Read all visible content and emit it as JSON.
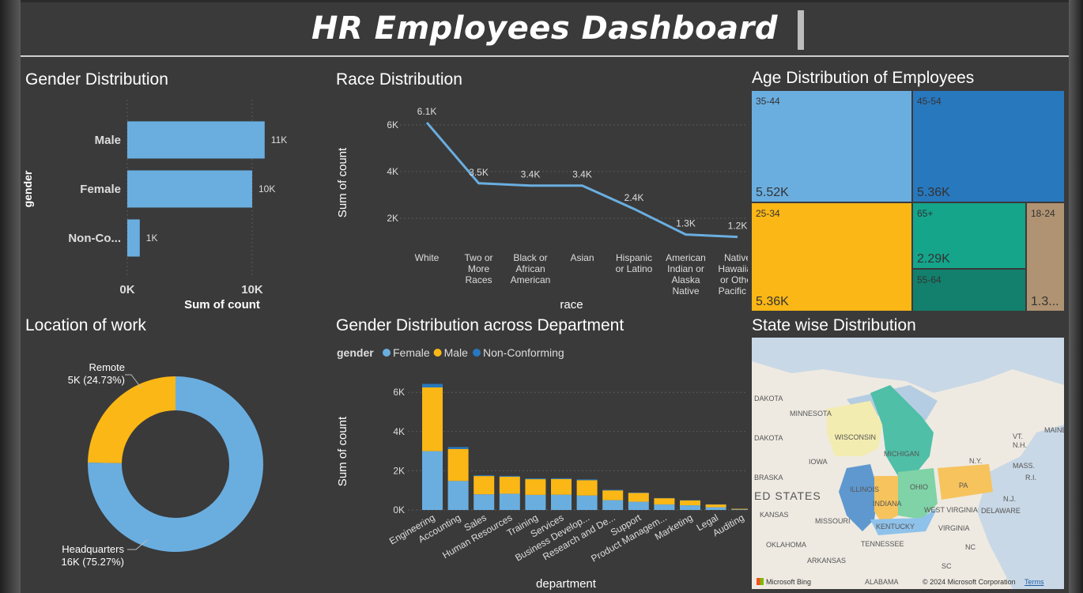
{
  "header": {
    "title": "HR Employees Dashboard"
  },
  "gender_panel": {
    "title": "Gender Distribution",
    "chart_data": {
      "type": "bar",
      "orientation": "horizontal",
      "categories": [
        "Male",
        "Female",
        "Non-Co..."
      ],
      "values": [
        11,
        10,
        1
      ],
      "data_labels": [
        "11K",
        "10K",
        "1K"
      ],
      "ticks": [
        "0K",
        "10K"
      ],
      "xlabel": "Sum of count",
      "ylabel": "gender",
      "color": "#6aaee0"
    }
  },
  "race_panel": {
    "title": "Race Distribution",
    "chart_data": {
      "type": "line",
      "categories": [
        "White",
        "Two or More Races",
        "Black or African American",
        "Asian",
        "Hispanic or Latino",
        "American Indian or Alaska Native",
        "Native Hawaiian or Other Pacific ..."
      ],
      "category_lines": [
        [
          "White"
        ],
        [
          "Two or",
          "More",
          "Races"
        ],
        [
          "Black or",
          "African",
          "American"
        ],
        [
          "Asian"
        ],
        [
          "Hispanic",
          "or Latino"
        ],
        [
          "American",
          "Indian or",
          "Alaska",
          "Native"
        ],
        [
          "Native",
          "Hawaiian",
          "or Other",
          "Pacific ..."
        ]
      ],
      "values": [
        6.1,
        3.5,
        3.4,
        3.4,
        2.4,
        1.3,
        1.2
      ],
      "data_labels": [
        "6.1K",
        "3.5K",
        "3.4K",
        "3.4K",
        "2.4K",
        "1.3K",
        "1.2K"
      ],
      "ticks": [
        "2K",
        "4K",
        "6K"
      ],
      "xlabel": "race",
      "ylabel": "Sum of count",
      "color": "#6aaee0"
    }
  },
  "age_panel": {
    "title": "Age Distribution of Employees",
    "chart_data": {
      "type": "treemap",
      "items": [
        {
          "label": "35-44",
          "value": "5.52K",
          "color": "#6aaee0"
        },
        {
          "label": "45-54",
          "value": "5.36K",
          "color": "#2878be"
        },
        {
          "label": "25-34",
          "value": "5.36K",
          "color": "#fbb715"
        },
        {
          "label": "65+",
          "value": "2.29K",
          "color": "#14a58b"
        },
        {
          "label": "55-64",
          "value": "",
          "color": "#12806c"
        },
        {
          "label": "18-24",
          "value": "1.3...",
          "color": "#b09372"
        }
      ]
    }
  },
  "location_panel": {
    "title": "Location of work",
    "chart_data": {
      "type": "pie",
      "variant": "donut",
      "slices": [
        {
          "name": "Headquarters",
          "value": 75.27,
          "label_line1": "Headquarters",
          "label_line2": "16K (75.27%)",
          "color": "#6aaee0"
        },
        {
          "name": "Remote",
          "value": 24.73,
          "label_line1": "Remote",
          "label_line2": "5K (24.73%)",
          "color": "#fbb715"
        }
      ]
    }
  },
  "dept_panel": {
    "title": "Gender Distribution across Department",
    "legend_title": "gender",
    "chart_data": {
      "type": "bar",
      "stacked": true,
      "categories": [
        "Engineering",
        "Accounting",
        "Sales",
        "Human Resources",
        "Training",
        "Services",
        "Business Develop...",
        "Research and De...",
        "Support",
        "Product Managem...",
        "Marketing",
        "Legal",
        "Auditing"
      ],
      "series": [
        {
          "name": "Female",
          "color": "#6aaee0",
          "values": [
            3.0,
            1.48,
            0.8,
            0.83,
            0.77,
            0.78,
            0.74,
            0.5,
            0.42,
            0.28,
            0.24,
            0.14,
            0.03
          ]
        },
        {
          "name": "Male",
          "color": "#fbb715",
          "values": [
            3.25,
            1.63,
            0.93,
            0.87,
            0.8,
            0.8,
            0.78,
            0.5,
            0.45,
            0.32,
            0.25,
            0.14,
            0.03
          ]
        },
        {
          "name": "Non-Conforming",
          "color": "#2878be",
          "values": [
            0.18,
            0.1,
            0.04,
            0.04,
            0.04,
            0.04,
            0.04,
            0.03,
            0.02,
            0.01,
            0.01,
            0.01,
            0.0
          ]
        }
      ],
      "ticks": [
        "0K",
        "2K",
        "4K",
        "6K"
      ],
      "ylim": [
        0,
        6.5
      ],
      "xlabel": "department",
      "ylabel": "Sum of count"
    }
  },
  "state_panel": {
    "title": "State wise Distribution",
    "map_labels": [
      "DAKOTA",
      "MINNESOTA",
      "DAKOTA",
      "WISCONSIN",
      "MICHIGAN",
      "IOWA",
      "BRASKA",
      "ED STATES",
      "ILLINOIS",
      "INDIANA",
      "OHIO",
      "PA",
      "KANSAS",
      "MISSOURI",
      "KENTUCKY",
      "WEST VIRGINIA",
      "VIRGINIA",
      "OKLAHOMA",
      "TENNESSEE",
      "NC",
      "ARKANSAS",
      "SC",
      "ALABAMA",
      "MAINE",
      "VT.",
      "N.H.",
      "MASS.",
      "N.Y.",
      "R.I.",
      "N.J.",
      "DELAWARE"
    ],
    "footer_brand": "Microsoft Bing",
    "footer_copyright": "© 2024 Microsoft Corporation",
    "footer_terms": "Terms"
  }
}
